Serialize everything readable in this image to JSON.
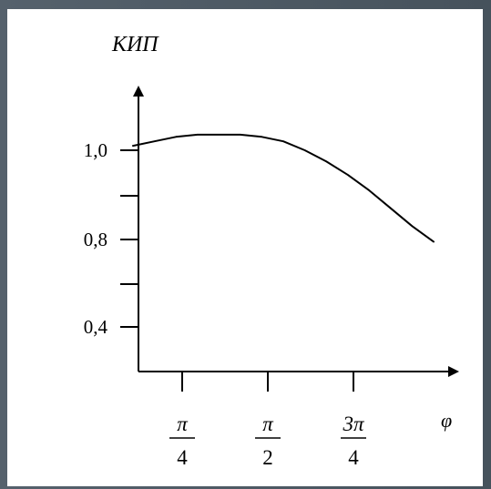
{
  "chart_data": {
    "type": "line",
    "title": "",
    "ylabel": "КИП",
    "xlabel": "φ",
    "yticks": [
      {
        "value": 0.4,
        "label": "0,4"
      },
      {
        "value": 0.6,
        "label": ""
      },
      {
        "value": 0.8,
        "label": "0,8"
      },
      {
        "value": 0.9,
        "label": ""
      },
      {
        "value": 1.0,
        "label": "1,0"
      }
    ],
    "xticks": [
      {
        "value": 0.785398,
        "numerator": "π",
        "denominator": "4"
      },
      {
        "value": 1.570796,
        "numerator": "π",
        "denominator": "2"
      },
      {
        "value": 2.356194,
        "numerator": "3π",
        "denominator": "4"
      }
    ],
    "grid": false,
    "series": [
      {
        "values": [
          [
            0.0,
            1.01
          ],
          [
            0.2,
            1.02
          ],
          [
            0.4,
            1.03
          ],
          [
            0.6,
            1.035
          ],
          [
            0.8,
            1.035
          ],
          [
            1.0,
            1.035
          ],
          [
            1.2,
            1.03
          ],
          [
            1.4,
            1.02
          ],
          [
            1.6,
            1.0
          ],
          [
            1.8,
            0.975
          ],
          [
            2.0,
            0.945
          ],
          [
            2.2,
            0.91
          ],
          [
            2.4,
            0.87
          ],
          [
            2.6,
            0.83
          ],
          [
            2.8,
            0.795
          ]
        ]
      }
    ]
  }
}
